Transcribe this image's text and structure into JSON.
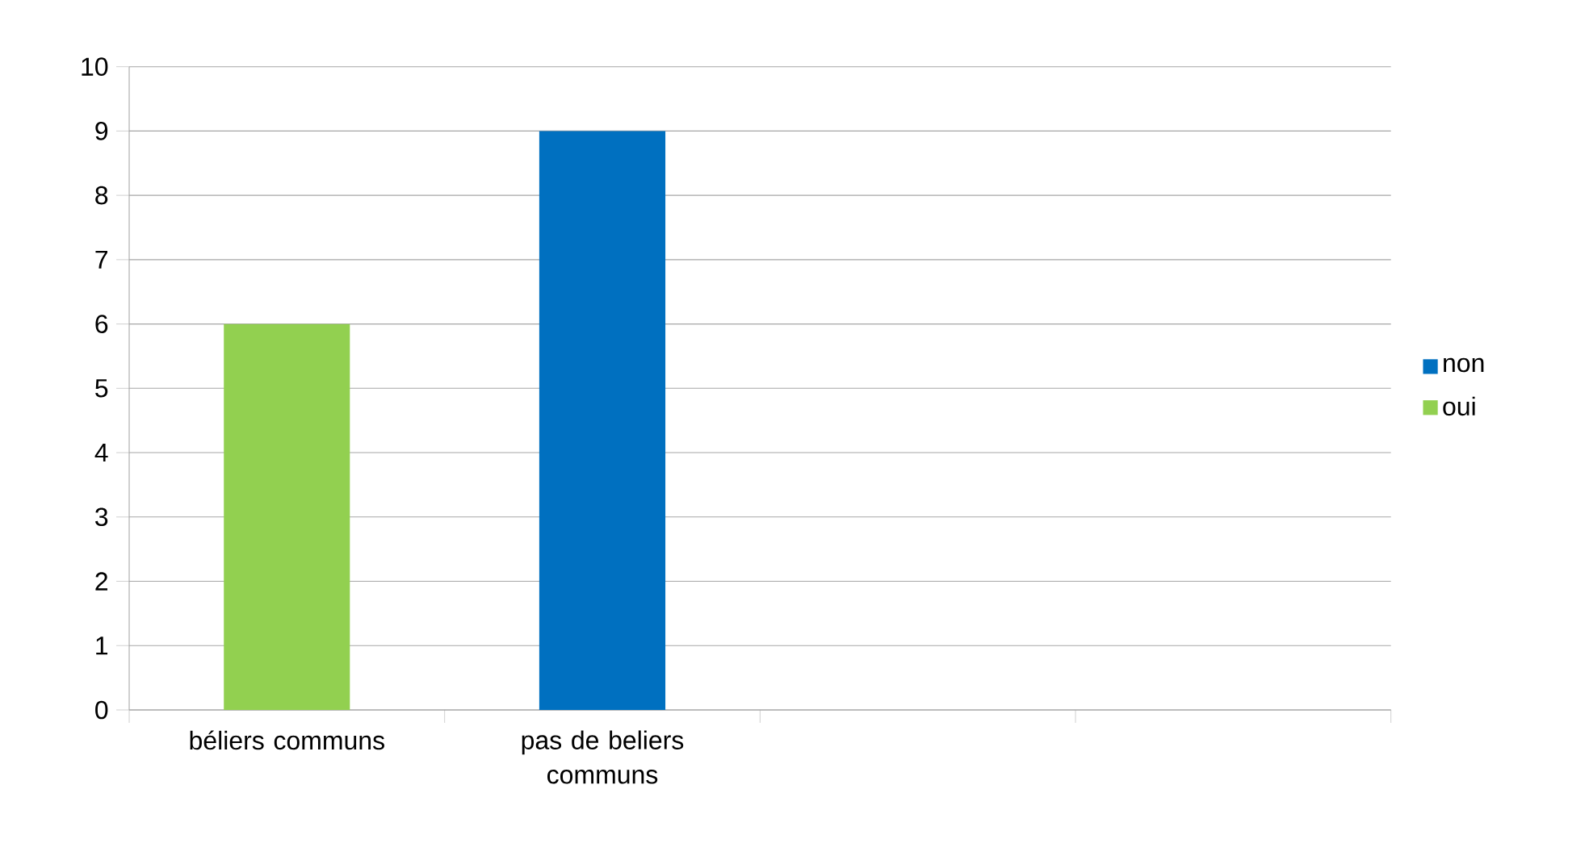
{
  "chart_data": {
    "type": "bar",
    "stacked": true,
    "categories": [
      "béliers communs",
      "pas de beliers communs",
      null,
      null
    ],
    "series": [
      {
        "name": "oui",
        "color": "#92d050",
        "values": [
          6,
          null,
          null,
          null
        ]
      },
      {
        "name": "non",
        "color": "#0070c0",
        "values": [
          null,
          9,
          null,
          null
        ]
      }
    ],
    "ylim": [
      0,
      10
    ],
    "yticks": [
      0,
      1,
      2,
      3,
      4,
      5,
      6,
      7,
      8,
      9,
      10
    ],
    "grid": "y",
    "legend": "right"
  }
}
